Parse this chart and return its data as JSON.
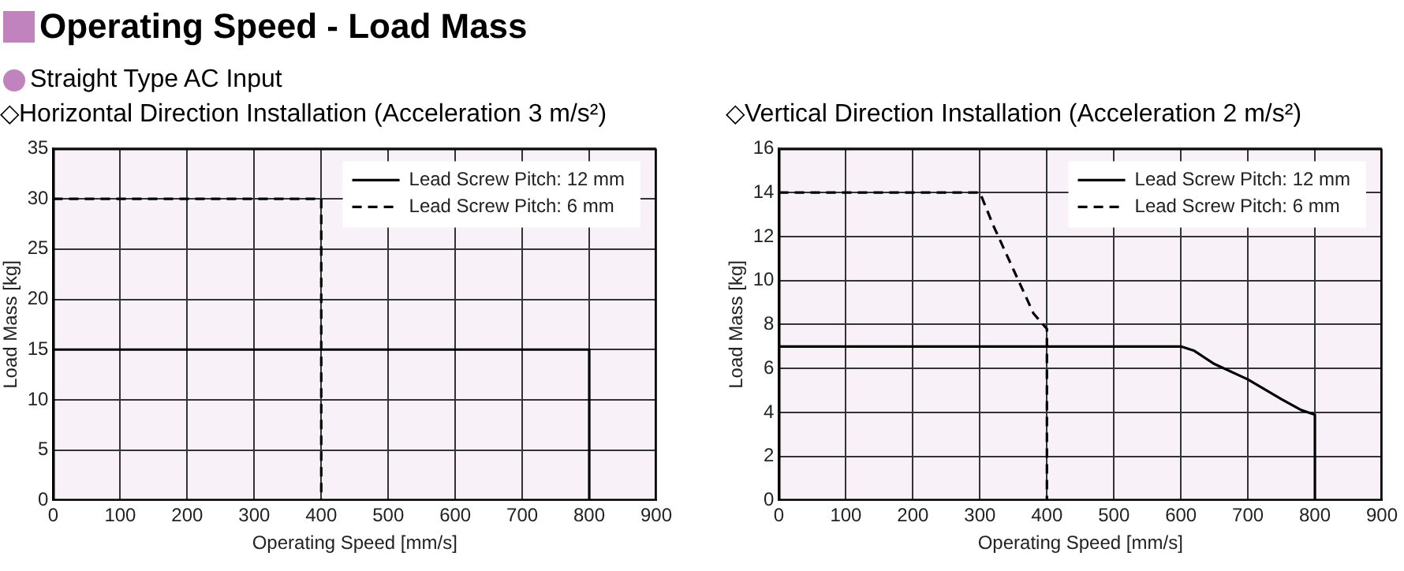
{
  "chart_data": [
    {
      "type": "line",
      "title": "◇Horizontal Direction Installation (Acceleration 3 m/s²)",
      "annotations": [
        "Operating Speed - Load Mass",
        "Straight Type AC Input"
      ],
      "xlabel": "Operating Speed [mm/s]",
      "ylabel": "Load Mass [kg]",
      "xlim": [
        0,
        900
      ],
      "xticks": [
        0,
        100,
        200,
        300,
        400,
        500,
        600,
        700,
        800,
        900
      ],
      "ylim": [
        0,
        35
      ],
      "yticks": [
        0,
        5,
        10,
        15,
        20,
        25,
        30,
        35
      ],
      "grid": true,
      "legend": "top right",
      "marker": "none",
      "series": [
        {
          "name": "Lead Screw Pitch: 12 mm",
          "color": "#000000",
          "line_style": "solid",
          "x": [
            0,
            800,
            800
          ],
          "values": [
            15,
            15,
            0
          ]
        },
        {
          "name": "Lead Screw Pitch: 6 mm",
          "color": "#000000",
          "line_style": "dashed",
          "x": [
            0,
            400,
            400
          ],
          "values": [
            30,
            30,
            0
          ]
        }
      ]
    },
    {
      "type": "line",
      "title": "◇Vertical Direction Installation (Acceleration 2 m/s²)",
      "xlabel": "Operating Speed [mm/s]",
      "ylabel": "Load Mass [kg]",
      "xlim": [
        0,
        900
      ],
      "xticks": [
        0,
        100,
        200,
        300,
        400,
        500,
        600,
        700,
        800,
        900
      ],
      "ylim": [
        0,
        16
      ],
      "yticks": [
        0,
        2,
        4,
        6,
        8,
        10,
        12,
        14,
        16
      ],
      "grid": true,
      "legend": "top right",
      "marker": "none",
      "series": [
        {
          "name": "Lead Screw Pitch: 12 mm",
          "color": "#000000",
          "line_style": "solid",
          "x": [
            0,
            600,
            620,
            650,
            700,
            750,
            780,
            800,
            800
          ],
          "values": [
            7,
            7,
            6.8,
            6.2,
            5.5,
            4.6,
            4.1,
            3.9,
            0
          ]
        },
        {
          "name": "Lead Screw Pitch: 6 mm",
          "color": "#000000",
          "line_style": "dashed",
          "x": [
            0,
            300,
            320,
            350,
            380,
            400,
            400
          ],
          "values": [
            14,
            14,
            12.5,
            10.5,
            8.5,
            7.8,
            0
          ]
        }
      ]
    }
  ]
}
